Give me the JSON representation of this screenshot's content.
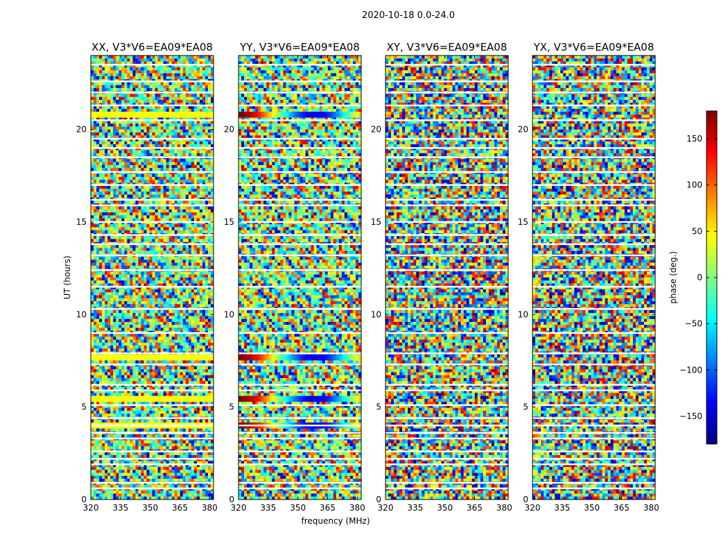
{
  "chart_data": {
    "type": "heatmap",
    "suptitle": "2020-10-18 0.0-24.0",
    "xlabel": "frequency (MHz)",
    "ylabel": "UT (hours)",
    "xlim": [
      320,
      382
    ],
    "ylim": [
      0,
      24
    ],
    "x_ticks": [
      "320",
      "335",
      "350",
      "365",
      "380"
    ],
    "x_tick_values": [
      320,
      335,
      350,
      365,
      380
    ],
    "y_ticks": [
      "0",
      "5",
      "10",
      "15",
      "20"
    ],
    "y_tick_values": [
      0,
      5,
      10,
      15,
      20
    ],
    "panels": [
      {
        "name": "xx",
        "title": "XX, V3*V6=EA09*EA08"
      },
      {
        "name": "yy",
        "title": "YY, V3*V6=EA09*EA08"
      },
      {
        "name": "xy",
        "title": "XY, V3*V6=EA09*EA08"
      },
      {
        "name": "yx",
        "title": "YX, V3*V6=EA09*EA08"
      }
    ],
    "flagged_gaps_ut": [
      0.6,
      0.9,
      1.9,
      2.2,
      2.6,
      3.3,
      3.6,
      4.0,
      4.4,
      5.1,
      5.9,
      6.2,
      7.3,
      7.9,
      9.0,
      10.3,
      11.5,
      12.4,
      13.2,
      13.8,
      14.3,
      15.0,
      15.9,
      16.2,
      17.0,
      17.7,
      18.5,
      19.0,
      19.5,
      20.5,
      21.3,
      22.0,
      22.6,
      23.5
    ],
    "colorbar": {
      "label": "phase (deg.)",
      "range": [
        -180,
        180
      ],
      "ticks": [
        "150",
        "100",
        "50",
        "0",
        "−50",
        "−100",
        "−150"
      ],
      "tick_values": [
        150,
        100,
        50,
        0,
        -50,
        -100,
        -150
      ],
      "colormap": "jet"
    }
  }
}
